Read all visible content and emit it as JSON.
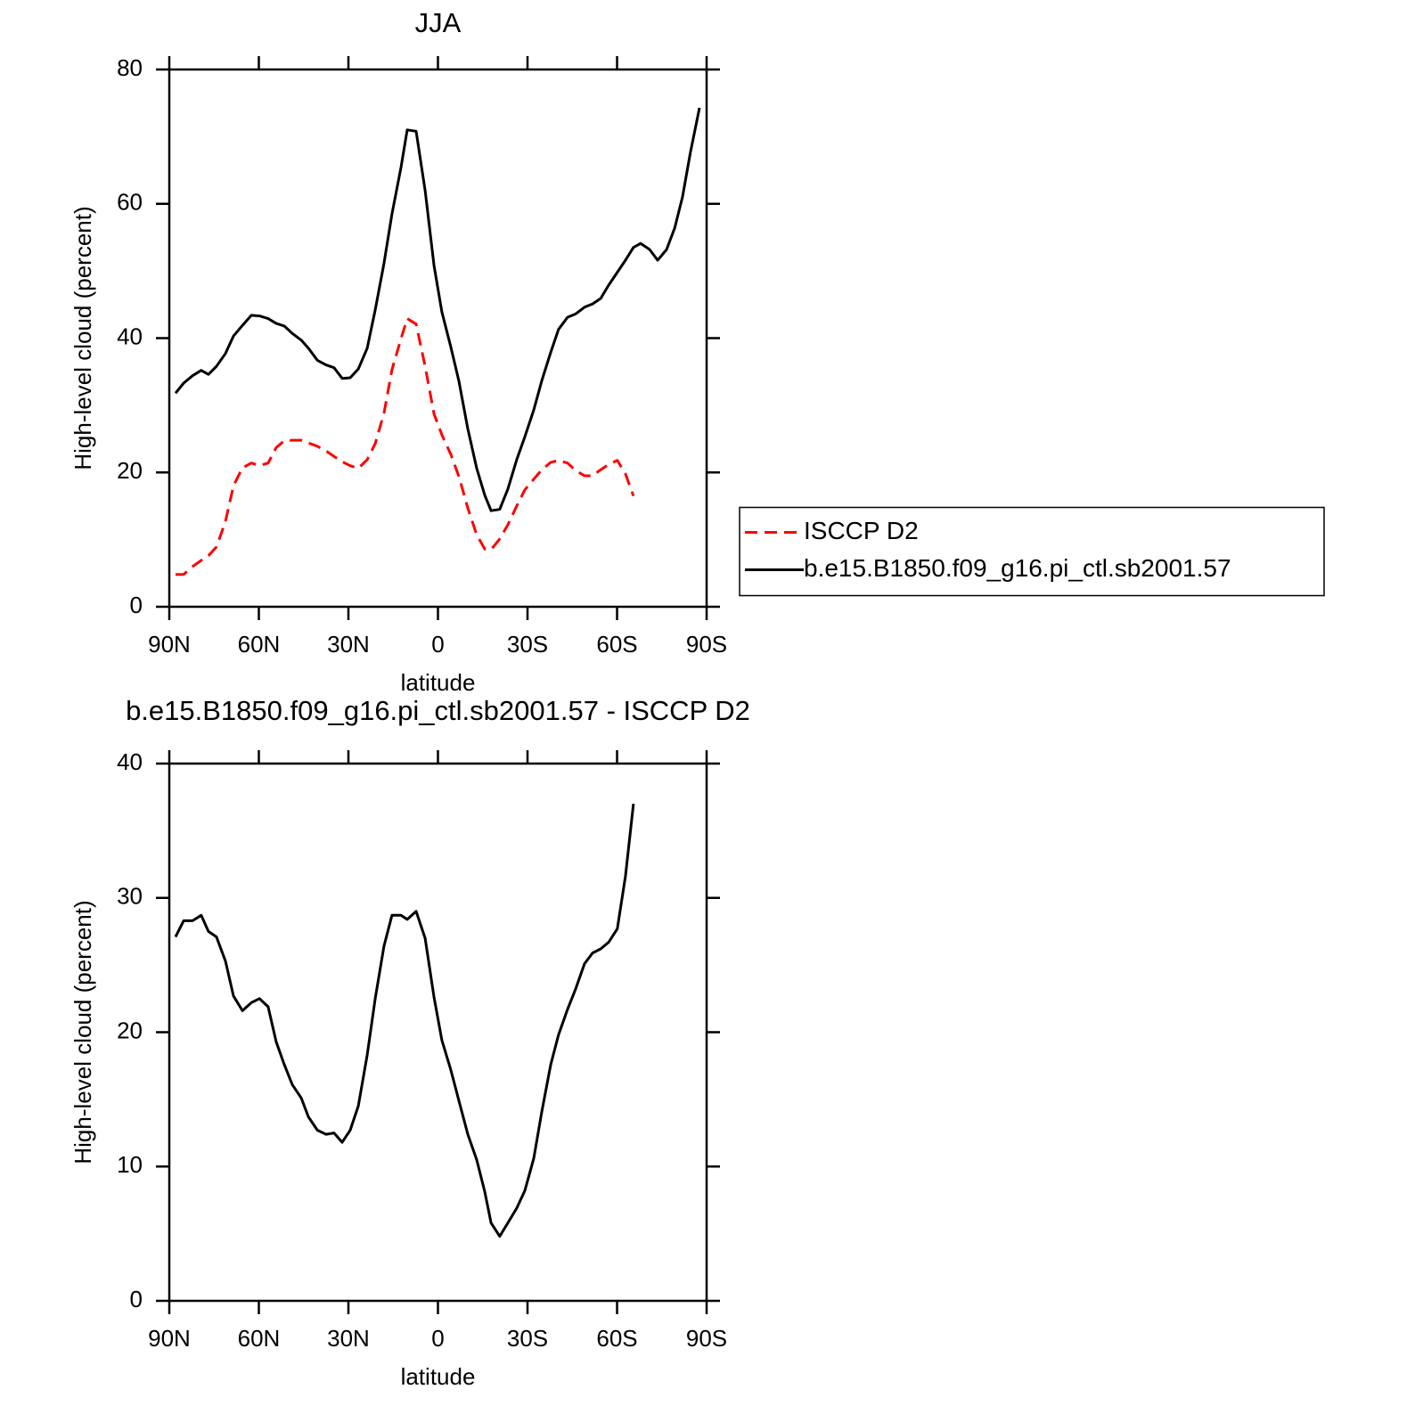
{
  "chart_data": [
    {
      "type": "line",
      "title": "JJA",
      "xlabel": "latitude",
      "ylabel": "High-level cloud (percent)",
      "x": [
        87.9,
        85.2,
        82.2,
        79.3,
        76.9,
        74.2,
        71.2,
        68.5,
        65.5,
        62.5,
        59.8,
        56.9,
        54.2,
        51.5,
        48.8,
        45.8,
        43.4,
        40.4,
        37.5,
        34.8,
        32.1,
        29.4,
        26.7,
        23.7,
        21.0,
        18.1,
        15.4,
        12.4,
        10.3,
        7.3,
        4.3,
        1.3,
        -1.3,
        -4.3,
        -7.0,
        -10.0,
        -13.0,
        -15.7,
        -17.8,
        -20.7,
        -23.4,
        -26.4,
        -29.1,
        -32.1,
        -34.8,
        -37.8,
        -40.4,
        -43.4,
        -46.1,
        -49.1,
        -51.8,
        -54.5,
        -57.2,
        -60.1,
        -62.8,
        -65.5,
        -67.9,
        -70.9,
        -73.6,
        -76.6,
        -79.3,
        -81.9,
        -84.6,
        -87.6
      ],
      "series": [
        {
          "name": "ISCCP D2",
          "color": "#ff0000",
          "dashed": true,
          "values": [
            4.8,
            4.8,
            6.0,
            6.9,
            7.6,
            8.9,
            12.7,
            18.0,
            20.7,
            21.4,
            21.0,
            21.4,
            23.7,
            24.7,
            24.8,
            24.8,
            24.4,
            23.9,
            23.2,
            22.4,
            21.6,
            21.0,
            20.6,
            21.9,
            24.3,
            28.8,
            35.3,
            39.9,
            42.9,
            42.1,
            35.8,
            28.7,
            25.6,
            22.7,
            19.4,
            14.7,
            10.7,
            8.6,
            8.5,
            10.1,
            12.2,
            15.0,
            17.4,
            19.0,
            20.4,
            21.5,
            21.8,
            21.4,
            20.3,
            19.5,
            19.5,
            20.4,
            21.2,
            21.8,
            19.8,
            16.5,
            null,
            null,
            null,
            null,
            null,
            null,
            null,
            null
          ]
        },
        {
          "name": "b.e15.B1850.f09_g16.pi_ctl.sb2001.57",
          "color": "#000000",
          "dashed": false,
          "values": [
            31.8,
            33.3,
            34.4,
            35.2,
            34.6,
            35.8,
            37.7,
            40.3,
            41.9,
            43.4,
            43.3,
            42.9,
            42.2,
            41.8,
            40.7,
            39.7,
            38.5,
            36.7,
            36.0,
            35.6,
            34.0,
            34.1,
            35.4,
            38.5,
            44.2,
            51.1,
            58.5,
            65.4,
            71.0,
            70.8,
            62.0,
            50.8,
            43.9,
            38.7,
            33.6,
            26.5,
            20.6,
            16.6,
            14.3,
            14.5,
            17.5,
            21.9,
            25.3,
            29.3,
            33.7,
            37.9,
            41.3,
            43.1,
            43.6,
            44.6,
            45.1,
            45.9,
            47.9,
            49.8,
            51.6,
            53.5,
            54.1,
            53.2,
            51.6,
            53.2,
            56.4,
            61.0,
            67.7,
            74.3
          ]
        }
      ],
      "xlim": [
        90,
        -90
      ],
      "xticks": [
        {
          "value": 90,
          "label": "90N"
        },
        {
          "value": 60,
          "label": "60N"
        },
        {
          "value": 30,
          "label": "30N"
        },
        0,
        {
          "value": -30,
          "label": "30S"
        },
        {
          "value": -60,
          "label": "60S"
        },
        {
          "value": -90,
          "label": "90S"
        }
      ],
      "ylim": [
        0,
        80
      ],
      "yticks": [
        0,
        20,
        40,
        60,
        80
      ],
      "legend": "right"
    },
    {
      "type": "line",
      "title": "b.e15.B1850.f09_g16.pi_ctl.sb2001.57 - ISCCP D2",
      "xlabel": "latitude",
      "ylabel": "High-level cloud (percent)",
      "x": [
        87.9,
        85.2,
        82.2,
        79.3,
        76.9,
        74.2,
        71.2,
        68.5,
        65.5,
        62.5,
        59.8,
        56.9,
        54.2,
        51.5,
        48.8,
        45.8,
        43.4,
        40.4,
        37.5,
        34.8,
        32.1,
        29.4,
        26.7,
        23.7,
        21.0,
        18.1,
        15.4,
        12.4,
        10.3,
        7.3,
        4.3,
        1.3,
        -1.3,
        -4.3,
        -7.0,
        -10.0,
        -13.0,
        -15.7,
        -17.8,
        -20.7,
        -23.4,
        -26.4,
        -29.1,
        -32.1,
        -34.8,
        -37.8,
        -40.4,
        -43.4,
        -46.1,
        -49.1,
        -51.8,
        -54.5,
        -57.2,
        -60.1,
        -62.8,
        -65.5,
        -67.9,
        -70.9,
        -73.6,
        -76.6,
        -79.3,
        -81.9,
        -84.6,
        -87.6
      ],
      "series": [
        {
          "color": "#000000",
          "dashed": false,
          "values": [
            27.1,
            28.3,
            28.3,
            28.7,
            27.5,
            27.1,
            25.3,
            22.7,
            21.6,
            22.2,
            22.5,
            21.9,
            19.3,
            17.6,
            16.1,
            15.1,
            13.7,
            12.7,
            12.4,
            12.5,
            11.8,
            12.7,
            14.5,
            18.3,
            22.5,
            26.4,
            28.7,
            28.7,
            28.4,
            29.0,
            27.0,
            22.6,
            19.4,
            17.2,
            14.9,
            12.4,
            10.5,
            8.1,
            5.8,
            4.8,
            5.8,
            6.9,
            8.2,
            10.6,
            14.1,
            17.6,
            19.8,
            21.7,
            23.2,
            25.1,
            25.9,
            26.2,
            26.7,
            27.7,
            31.6,
            37.0,
            null,
            null,
            null,
            null,
            null,
            null,
            null,
            null
          ]
        }
      ],
      "xlim": [
        90,
        -90
      ],
      "xticks": [
        {
          "value": 90,
          "label": "90N"
        },
        {
          "value": 60,
          "label": "60N"
        },
        {
          "value": 30,
          "label": "30N"
        },
        0,
        {
          "value": -30,
          "label": "30S"
        },
        {
          "value": -60,
          "label": "60S"
        },
        {
          "value": -90,
          "label": "90S"
        }
      ],
      "ylim": [
        0,
        40
      ],
      "yticks": [
        0,
        10,
        20,
        30,
        40
      ]
    }
  ]
}
